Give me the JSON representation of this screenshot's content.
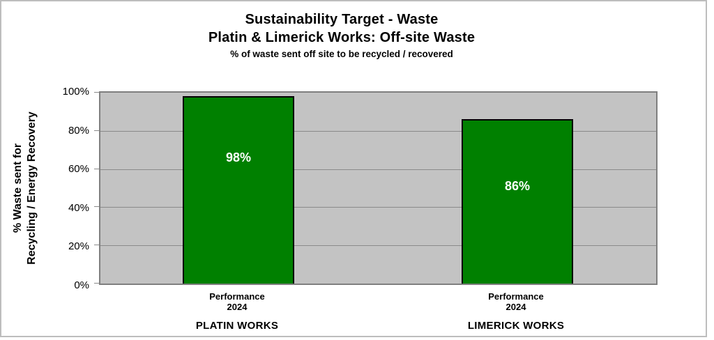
{
  "title": {
    "line1": "Sustainability Target - Waste",
    "line2": "Platin & Limerick Works: Off-site Waste",
    "subtitle": "% of waste sent off site to be recycled / recovered"
  },
  "y_axis": {
    "title_line1": "% Waste sent for",
    "title_line2": "Recycling / Energy Recovery",
    "ticks": [
      "100%",
      "80%",
      "60%",
      "40%",
      "20%",
      "0%"
    ]
  },
  "chart_data": {
    "type": "bar",
    "title": "Sustainability Target - Waste",
    "subtitle": "Platin & Limerick Works: Off-site Waste",
    "subtitle2": "% of waste sent off site to be recycled / recovered",
    "categories": [
      "PLATIN WORKS",
      "LIMERICK WORKS"
    ],
    "series": [
      {
        "name": "Performance 2024",
        "values": [
          98,
          86
        ]
      }
    ],
    "bars": [
      {
        "category": "PLATIN WORKS",
        "series_line1": "Performance",
        "series_line2": "2024",
        "value": 98,
        "value_label": "98%"
      },
      {
        "category": "LIMERICK WORKS",
        "series_line1": "Performance",
        "series_line2": "2024",
        "value": 86,
        "value_label": "86%"
      }
    ],
    "xlabel": "",
    "ylabel": "% Waste sent for Recycling / Energy Recovery",
    "ylim": [
      0,
      100
    ],
    "ytick_interval": 20,
    "ytick_labels": [
      "0%",
      "20%",
      "40%",
      "60%",
      "80%",
      "100%"
    ],
    "grid": true,
    "legend": "none",
    "bar_color": "#008000",
    "bar_border_color": "#000000",
    "plot_background": "#c3c3c3",
    "value_label_color": "#ffffff"
  }
}
